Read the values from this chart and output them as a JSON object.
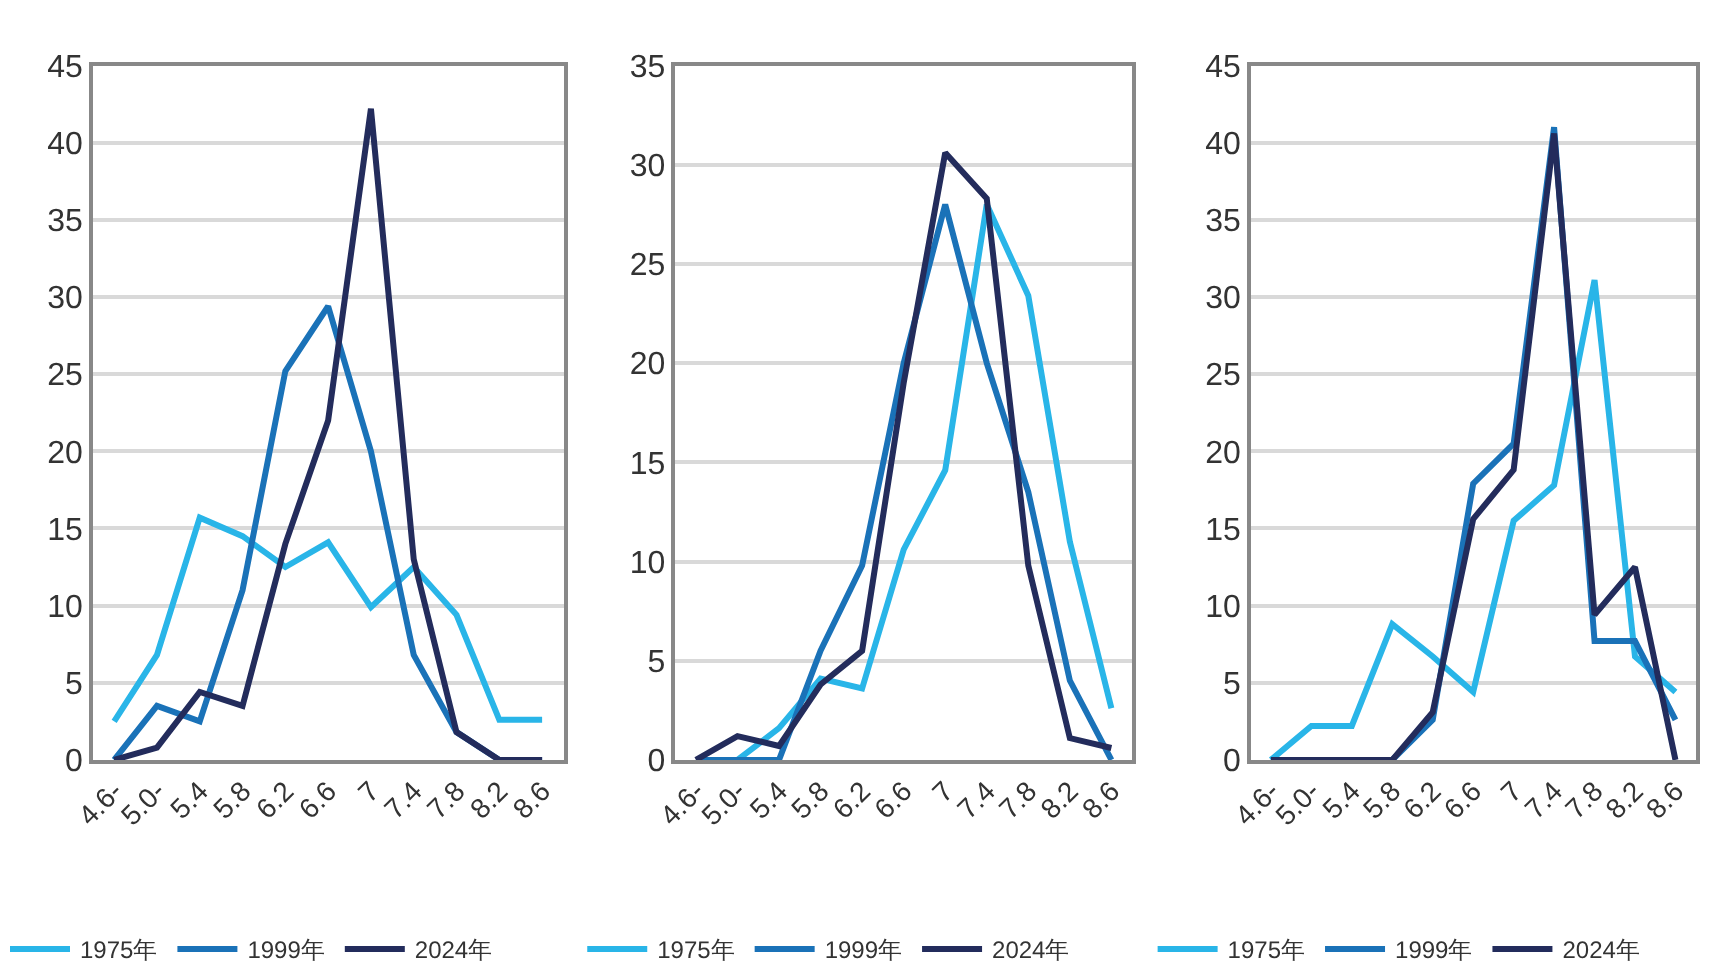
{
  "chart_data": [
    {
      "type": "line",
      "categories": [
        "4.6-",
        "5.0-",
        "5.4",
        "5.8",
        "6.2",
        "6.6",
        "7",
        "7.4",
        "7.8",
        "8.2",
        "8.6"
      ],
      "ylim": [
        0,
        45
      ],
      "yticks": [
        0,
        5,
        10,
        15,
        20,
        25,
        30,
        35,
        40,
        45
      ],
      "grid": "y",
      "legend": "bottom",
      "marker": "none",
      "line_style": "solid",
      "series": [
        {
          "name": "1975年",
          "color": "#29b5e8",
          "values": [
            2.5,
            6.8,
            15.7,
            14.5,
            12.5,
            14.1,
            9.9,
            12.5,
            9.4,
            2.6,
            2.6
          ]
        },
        {
          "name": "1999年",
          "color": "#1a72b8",
          "values": [
            0,
            3.5,
            2.5,
            11,
            25.2,
            29.4,
            20,
            6.8,
            1.8,
            0,
            0
          ]
        },
        {
          "name": "2024年",
          "color": "#232c5c",
          "values": [
            0,
            0.8,
            4.4,
            3.5,
            14,
            22,
            42.2,
            13,
            1.8,
            0,
            0
          ]
        }
      ]
    },
    {
      "type": "line",
      "categories": [
        "4.6-",
        "5.0-",
        "5.4",
        "5.8",
        "6.2",
        "6.6",
        "7",
        "7.4",
        "7.8",
        "8.2",
        "8.6"
      ],
      "ylim": [
        0,
        35
      ],
      "yticks": [
        0,
        5,
        10,
        15,
        20,
        25,
        30,
        35
      ],
      "grid": "y",
      "legend": "bottom",
      "marker": "none",
      "line_style": "solid",
      "series": [
        {
          "name": "1975年",
          "color": "#29b5e8",
          "values": [
            0,
            0,
            1.6,
            4.1,
            3.6,
            10.6,
            14.6,
            28,
            23.4,
            11,
            2.6
          ]
        },
        {
          "name": "1999年",
          "color": "#1a72b8",
          "values": [
            0,
            0,
            0,
            5.5,
            9.8,
            20,
            28,
            20,
            13.5,
            4,
            0
          ]
        },
        {
          "name": "2024年",
          "color": "#232c5c",
          "values": [
            0,
            1.2,
            0.7,
            3.8,
            5.5,
            19,
            30.6,
            28.3,
            9.8,
            1.1,
            0.6
          ]
        }
      ]
    },
    {
      "type": "line",
      "categories": [
        "4.6-",
        "5.0-",
        "5.4",
        "5.8",
        "6.2",
        "6.6",
        "7",
        "7.4",
        "7.8",
        "8.2",
        "8.6"
      ],
      "ylim": [
        0,
        45
      ],
      "yticks": [
        0,
        5,
        10,
        15,
        20,
        25,
        30,
        35,
        40,
        45
      ],
      "grid": "y",
      "legend": "bottom",
      "marker": "none",
      "line_style": "solid",
      "series": [
        {
          "name": "1975年",
          "color": "#29b5e8",
          "values": [
            0,
            2.2,
            2.2,
            8.8,
            6.7,
            4.4,
            15.5,
            17.8,
            31.1,
            6.7,
            4.4
          ]
        },
        {
          "name": "1999年",
          "color": "#1a72b8",
          "values": [
            0,
            0,
            0,
            0,
            2.6,
            17.9,
            20.5,
            41,
            7.7,
            7.7,
            2.6
          ]
        },
        {
          "name": "2024年",
          "color": "#232c5c",
          "values": [
            0,
            0,
            0,
            0,
            3.1,
            15.6,
            18.8,
            40.6,
            9.4,
            12.5,
            0
          ]
        }
      ]
    }
  ]
}
